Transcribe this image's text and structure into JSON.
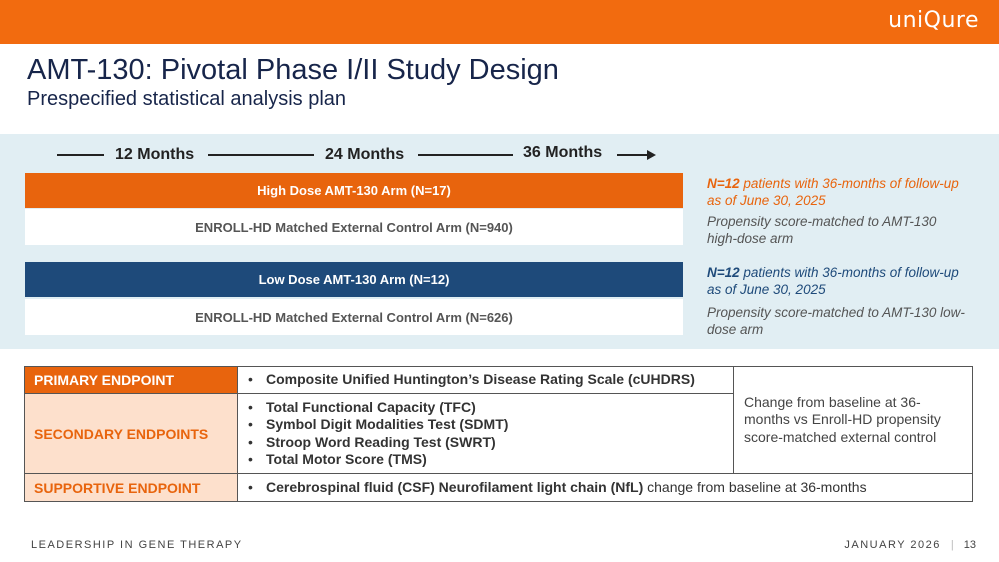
{
  "header": {
    "logo": "uniQure",
    "brand_color": "#f26b0f"
  },
  "title": "AMT-130: Pivotal Phase I/II Study Design",
  "subtitle": "Prespecified statistical analysis plan",
  "timeline": {
    "labels": [
      "12 Months",
      "24 Months",
      "36 Months"
    ]
  },
  "arms": {
    "high": "High Dose AMT-130 Arm (N=17)",
    "high_control": "ENROLL-HD Matched External Control Arm (N=940)",
    "low": "Low Dose AMT-130 Arm (N=12)",
    "low_control": "ENROLL-HD Matched External Control Arm (N=626)"
  },
  "notes": {
    "high_n": "N=12",
    "high_followup": " patients with 36-months of follow-up as of June 30, 2025",
    "high_match": "Propensity score-matched to AMT-130 high-dose arm",
    "low_n": "N=12",
    "low_followup": " patients with 36-months of follow-up as of June 30, 2025",
    "low_match": "Propensity score-matched to AMT-130 low-dose arm"
  },
  "endpoints": {
    "primary_label": "PRIMARY ENDPOINT",
    "primary_items": [
      "Composite Unified Huntington’s Disease Rating Scale (cUHDRS)"
    ],
    "secondary_label": "SECONDARY ENDPOINTS",
    "secondary_items": [
      "Total Functional Capacity (TFC)",
      "Symbol Digit Modalities Test (SDMT)",
      "Stroop Word Reading Test (SWRT)",
      "Total Motor Score (TMS)"
    ],
    "change_text": "Change from baseline at 36-months vs Enroll-HD propensity score-matched external control",
    "supportive_label": "SUPPORTIVE ENDPOINT",
    "supportive_bold": "Cerebrospinal fluid (CSF) Neurofilament light chain (NfL)",
    "supportive_plain": " change from baseline at 36-months"
  },
  "footer": {
    "tagline": "LEADERSHIP IN GENE THERAPY",
    "date": "JANUARY 2026",
    "separator": "|",
    "page": "13"
  }
}
